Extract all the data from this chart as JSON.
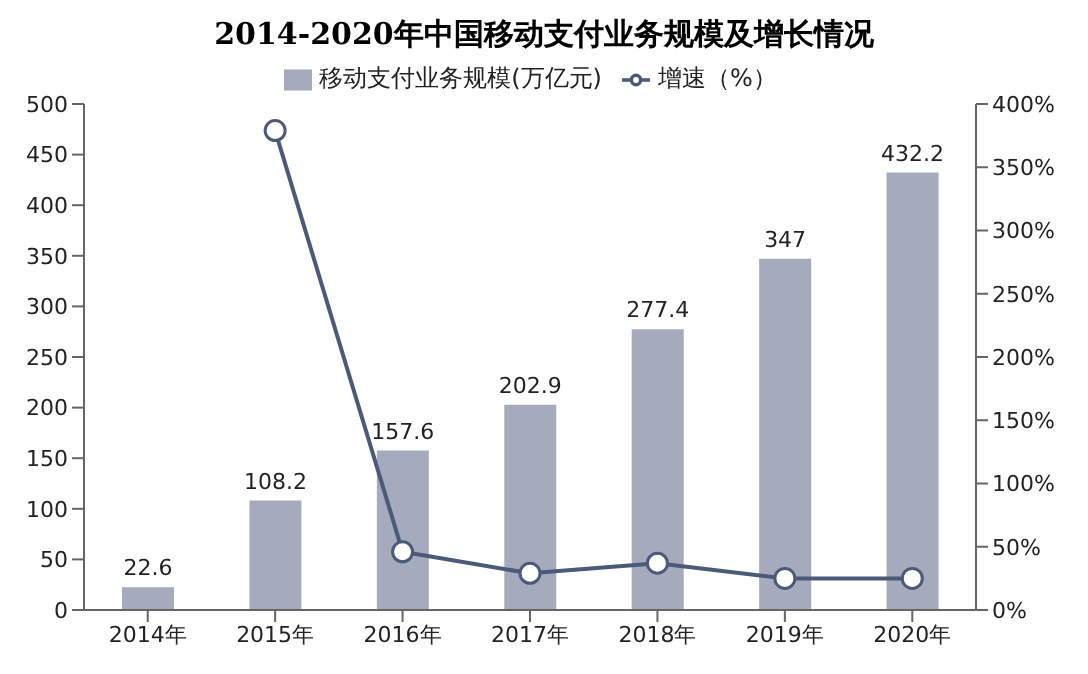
{
  "chart_data": {
    "type": "bar",
    "title": "2014-2020年中国移动支付业务规模及增长情况",
    "categories": [
      "2014年",
      "2015年",
      "2016年",
      "2017年",
      "2018年",
      "2019年",
      "2020年"
    ],
    "series": [
      {
        "name": "移动支付业务规模(万亿元)",
        "color": "#a6aabd",
        "values": [
          22.6,
          108.2,
          157.6,
          202.9,
          277.4,
          347,
          432.2
        ],
        "value_labels": [
          "22.6",
          "108.2",
          "157.6",
          "202.9",
          "277.4",
          "347",
          "432.2"
        ]
      },
      {
        "name": "增速（%）",
        "type": "line",
        "axis": "y2",
        "color": "#4b5a78",
        "marker": "circle",
        "values": [
          null,
          379,
          46,
          29,
          37,
          25,
          25
        ]
      }
    ],
    "ylim": [
      0,
      500
    ],
    "yticks": [
      0,
      50,
      100,
      150,
      200,
      250,
      300,
      350,
      400,
      450,
      500
    ],
    "y2lim": [
      0,
      400
    ],
    "y2ticks": [
      {
        "value": 0,
        "label": "0%"
      },
      {
        "value": 50,
        "label": "50%"
      },
      {
        "value": 100,
        "label": "100%"
      },
      {
        "value": 150,
        "label": "150%"
      },
      {
        "value": 200,
        "label": "200%"
      },
      {
        "value": 250,
        "label": "250%"
      },
      {
        "value": 300,
        "label": "300%"
      },
      {
        "value": 350,
        "label": "350%"
      },
      {
        "value": 400,
        "label": "400%"
      }
    ],
    "grid": false,
    "legend": "top"
  }
}
